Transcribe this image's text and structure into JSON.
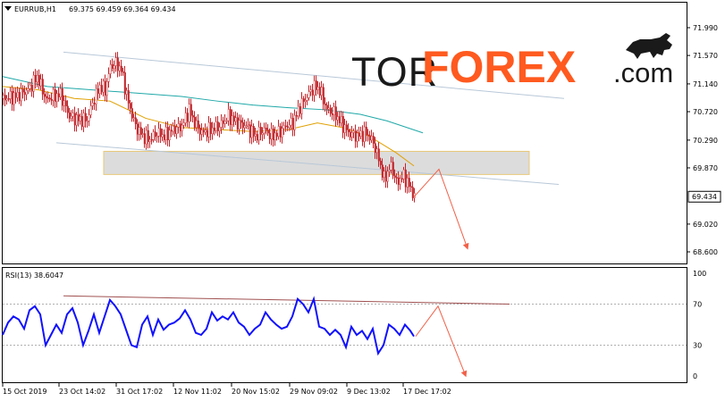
{
  "header": {
    "symbol": "EURRUB,H1",
    "ohlc": "69.375 69.459 69.364 69.434"
  },
  "logo": {
    "part1": "TOR",
    "part2": "FOREX",
    "part3": ".com"
  },
  "rsi_header": "RSI(13) 38.6047",
  "colors": {
    "candle": "#c0262c",
    "ma_fast": "#e0a000",
    "ma_slow": "#20a8a8",
    "rsi": "#1010ff",
    "arrow": "#f06048",
    "channel": "#b8c8d8",
    "resistance": "#a05050",
    "zone_fill": "#dcdcdc",
    "zone_border": "#e8c878"
  },
  "chart_data": [
    {
      "type": "candlestick",
      "ylim": [
        68.6,
        72.2
      ],
      "y_ticks": [
        "71.990",
        "71.570",
        "71.140",
        "70.720",
        "70.290",
        "69.870",
        "69.434",
        "69.020",
        "68.600"
      ],
      "x_ticks": [
        "15 Oct 2019",
        "23 Oct 14:02",
        "31 Oct 17:02",
        "12 Nov 11:02",
        "20 Nov 15:02",
        "29 Nov 09:02",
        "9 Dec 13:02",
        "17 Dec 17:02"
      ],
      "last_price": "69.434",
      "close_path": [
        [
          0,
          70.92
        ],
        [
          14,
          70.95
        ],
        [
          28,
          71.05
        ],
        [
          38,
          71.25
        ],
        [
          48,
          70.9
        ],
        [
          56,
          70.95
        ],
        [
          64,
          70.98
        ],
        [
          74,
          70.65
        ],
        [
          84,
          70.6
        ],
        [
          94,
          70.6
        ],
        [
          100,
          70.85
        ],
        [
          108,
          71.1
        ],
        [
          114,
          71.05
        ],
        [
          120,
          71.4
        ],
        [
          126,
          71.45
        ],
        [
          132,
          71.35
        ],
        [
          140,
          70.85
        ],
        [
          148,
          70.5
        ],
        [
          156,
          70.35
        ],
        [
          164,
          70.3
        ],
        [
          172,
          70.4
        ],
        [
          180,
          70.35
        ],
        [
          190,
          70.45
        ],
        [
          200,
          70.5
        ],
        [
          208,
          70.75
        ],
        [
          214,
          70.55
        ],
        [
          222,
          70.4
        ],
        [
          232,
          70.45
        ],
        [
          242,
          70.5
        ],
        [
          252,
          70.65
        ],
        [
          262,
          70.55
        ],
        [
          272,
          70.5
        ],
        [
          282,
          70.35
        ],
        [
          292,
          70.45
        ],
        [
          300,
          70.35
        ],
        [
          308,
          70.4
        ],
        [
          316,
          70.5
        ],
        [
          324,
          70.55
        ],
        [
          332,
          70.8
        ],
        [
          340,
          70.95
        ],
        [
          348,
          71.1
        ],
        [
          354,
          71.05
        ],
        [
          362,
          70.75
        ],
        [
          370,
          70.7
        ],
        [
          378,
          70.55
        ],
        [
          386,
          70.4
        ],
        [
          396,
          70.35
        ],
        [
          406,
          70.4
        ],
        [
          414,
          70.25
        ],
        [
          420,
          70.0
        ],
        [
          426,
          69.7
        ],
        [
          434,
          69.9
        ],
        [
          440,
          69.65
        ],
        [
          448,
          69.75
        ],
        [
          456,
          69.55
        ],
        [
          460,
          69.43
        ]
      ],
      "ma_fast_path": [
        [
          0,
          71.1
        ],
        [
          40,
          71.05
        ],
        [
          80,
          70.92
        ],
        [
          120,
          70.88
        ],
        [
          160,
          70.62
        ],
        [
          200,
          70.48
        ],
        [
          240,
          70.45
        ],
        [
          280,
          70.42
        ],
        [
          320,
          70.45
        ],
        [
          352,
          70.55
        ],
        [
          380,
          70.48
        ],
        [
          410,
          70.35
        ],
        [
          440,
          70.1
        ],
        [
          460,
          69.9
        ]
      ],
      "ma_slow_path": [
        [
          0,
          71.25
        ],
        [
          50,
          71.1
        ],
        [
          100,
          71.05
        ],
        [
          150,
          71.0
        ],
        [
          200,
          70.95
        ],
        [
          240,
          70.88
        ],
        [
          280,
          70.82
        ],
        [
          320,
          70.78
        ],
        [
          360,
          70.75
        ],
        [
          400,
          70.68
        ],
        [
          430,
          70.58
        ],
        [
          470,
          70.4
        ]
      ],
      "channel_upper": [
        [
          68,
          71.62
        ],
        [
          628,
          70.92
        ]
      ],
      "channel_lower": [
        [
          60,
          70.25
        ],
        [
          622,
          69.62
        ]
      ],
      "support_zone": {
        "x_start": 113,
        "x_end": 589,
        "y_top": 70.12,
        "y_bottom": 69.77
      },
      "forecast": [
        [
          460,
          69.43
        ],
        [
          488,
          69.85
        ],
        [
          520,
          68.65
        ]
      ]
    },
    {
      "type": "line",
      "name": "RSI(13)",
      "ylim": [
        0,
        100
      ],
      "y_ticks": [
        "100",
        "70",
        "30",
        "0"
      ],
      "levels": [
        70,
        30
      ],
      "path": [
        [
          0,
          40
        ],
        [
          6,
          52
        ],
        [
          12,
          58
        ],
        [
          18,
          55
        ],
        [
          24,
          46
        ],
        [
          30,
          64
        ],
        [
          36,
          68
        ],
        [
          42,
          60
        ],
        [
          48,
          30
        ],
        [
          54,
          40
        ],
        [
          60,
          50
        ],
        [
          66,
          42
        ],
        [
          72,
          60
        ],
        [
          78,
          66
        ],
        [
          84,
          52
        ],
        [
          90,
          30
        ],
        [
          96,
          44
        ],
        [
          102,
          60
        ],
        [
          108,
          42
        ],
        [
          114,
          58
        ],
        [
          120,
          74
        ],
        [
          126,
          68
        ],
        [
          132,
          60
        ],
        [
          138,
          45
        ],
        [
          144,
          30
        ],
        [
          150,
          28
        ],
        [
          156,
          50
        ],
        [
          162,
          58
        ],
        [
          168,
          40
        ],
        [
          174,
          55
        ],
        [
          180,
          45
        ],
        [
          186,
          50
        ],
        [
          192,
          52
        ],
        [
          198,
          56
        ],
        [
          204,
          64
        ],
        [
          210,
          55
        ],
        [
          216,
          42
        ],
        [
          222,
          40
        ],
        [
          228,
          46
        ],
        [
          234,
          62
        ],
        [
          240,
          54
        ],
        [
          246,
          58
        ],
        [
          252,
          55
        ],
        [
          258,
          62
        ],
        [
          264,
          52
        ],
        [
          270,
          48
        ],
        [
          276,
          40
        ],
        [
          282,
          46
        ],
        [
          288,
          50
        ],
        [
          294,
          62
        ],
        [
          300,
          55
        ],
        [
          306,
          50
        ],
        [
          312,
          46
        ],
        [
          318,
          48
        ],
        [
          324,
          58
        ],
        [
          330,
          75
        ],
        [
          336,
          70
        ],
        [
          342,
          62
        ],
        [
          348,
          75
        ],
        [
          354,
          48
        ],
        [
          360,
          46
        ],
        [
          366,
          40
        ],
        [
          372,
          45
        ],
        [
          378,
          40
        ],
        [
          384,
          28
        ],
        [
          390,
          48
        ],
        [
          396,
          40
        ],
        [
          402,
          44
        ],
        [
          408,
          36
        ],
        [
          414,
          46
        ],
        [
          420,
          22
        ],
        [
          426,
          30
        ],
        [
          432,
          50
        ],
        [
          438,
          46
        ],
        [
          444,
          40
        ],
        [
          450,
          50
        ],
        [
          456,
          44
        ],
        [
          460,
          38.6
        ]
      ],
      "resistance": [
        [
          68,
          78
        ],
        [
          567,
          70
        ]
      ],
      "forecast": [
        [
          462,
          38.6
        ],
        [
          487,
          68
        ],
        [
          518,
          0
        ]
      ]
    }
  ]
}
